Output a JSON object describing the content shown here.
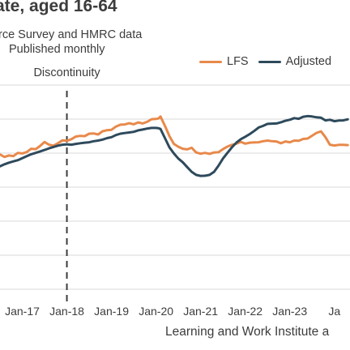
{
  "chart_data": {
    "type": "line",
    "title": "ate, aged 16-64",
    "subtitle": [
      "rce Survey and HMRC data",
      "Published monthly"
    ],
    "source": "Learning and Work Institute a",
    "annotation": "Discontinuity",
    "annotation_x": 2018.0,
    "xticks": [
      "Jan-17",
      "Jan-18",
      "Jan-19",
      "Jan-20",
      "Jan-21",
      "Jan-22",
      "Jan-23",
      "Ja"
    ],
    "xtick_values": [
      2017,
      2018,
      2019,
      2020,
      2021,
      2022,
      2023,
      2024
    ],
    "xlim": [
      2016.5,
      2024.35
    ],
    "ylim": [
      0,
      1
    ],
    "grid": true,
    "legend_position": "top-right",
    "series": [
      {
        "name": "LFS",
        "color": "#e8894a",
        "x": [
          2016.5,
          2016.6,
          2016.7,
          2016.8,
          2016.9,
          2017.0,
          2017.1,
          2017.2,
          2017.3,
          2017.4,
          2017.5,
          2017.6,
          2017.7,
          2017.8,
          2017.9,
          2018.0,
          2018.1,
          2018.2,
          2018.3,
          2018.4,
          2018.5,
          2018.6,
          2018.7,
          2018.8,
          2018.9,
          2019.0,
          2019.1,
          2019.2,
          2019.3,
          2019.4,
          2019.5,
          2019.6,
          2019.7,
          2019.8,
          2019.9,
          2020.0,
          2020.05,
          2020.1,
          2020.2,
          2020.3,
          2020.4,
          2020.5,
          2020.6,
          2020.7,
          2020.8,
          2020.9,
          2021.0,
          2021.1,
          2021.2,
          2021.3,
          2021.4,
          2021.5,
          2021.6,
          2021.7,
          2021.8,
          2021.9,
          2022.0,
          2022.1,
          2022.2,
          2022.3,
          2022.4,
          2022.5,
          2022.6,
          2022.7,
          2022.8,
          2022.9,
          2023.0,
          2023.1,
          2023.2,
          2023.3,
          2023.4,
          2023.5,
          2023.6,
          2023.7,
          2023.8,
          2023.9,
          2024.0,
          2024.1,
          2024.2,
          2024.3
        ],
        "values": [
          0.66,
          0.648,
          0.655,
          0.652,
          0.668,
          0.665,
          0.672,
          0.688,
          0.686,
          0.702,
          0.721,
          0.708,
          0.703,
          0.715,
          0.729,
          0.727,
          0.735,
          0.748,
          0.751,
          0.75,
          0.762,
          0.763,
          0.758,
          0.774,
          0.779,
          0.781,
          0.797,
          0.806,
          0.807,
          0.813,
          0.808,
          0.817,
          0.812,
          0.82,
          0.833,
          0.834,
          0.836,
          0.846,
          0.8,
          0.75,
          0.712,
          0.698,
          0.688,
          0.685,
          0.693,
          0.67,
          0.664,
          0.668,
          0.663,
          0.67,
          0.671,
          0.686,
          0.699,
          0.707,
          0.713,
          0.722,
          0.713,
          0.718,
          0.719,
          0.72,
          0.725,
          0.728,
          0.725,
          0.724,
          0.715,
          0.724,
          0.72,
          0.728,
          0.727,
          0.736,
          0.738,
          0.752,
          0.766,
          0.773,
          0.745,
          0.708,
          0.704,
          0.707,
          0.707,
          0.706
        ]
      },
      {
        "name": "Adjusted",
        "color": "#2e4a5c",
        "x": [
          2016.5,
          2016.6,
          2016.7,
          2016.8,
          2016.9,
          2017.0,
          2017.1,
          2017.2,
          2017.3,
          2017.4,
          2017.5,
          2017.6,
          2017.7,
          2017.8,
          2017.9,
          2018.0,
          2018.1,
          2018.2,
          2018.3,
          2018.4,
          2018.5,
          2018.6,
          2018.7,
          2018.8,
          2018.9,
          2019.0,
          2019.1,
          2019.2,
          2019.3,
          2019.4,
          2019.5,
          2019.6,
          2019.7,
          2019.8,
          2019.9,
          2020.0,
          2020.05,
          2020.1,
          2020.2,
          2020.3,
          2020.4,
          2020.5,
          2020.6,
          2020.7,
          2020.8,
          2020.9,
          2021.0,
          2021.1,
          2021.2,
          2021.3,
          2021.4,
          2021.5,
          2021.6,
          2021.7,
          2021.8,
          2021.9,
          2022.0,
          2022.1,
          2022.2,
          2022.3,
          2022.4,
          2022.5,
          2022.6,
          2022.7,
          2022.8,
          2022.9,
          2023.0,
          2023.1,
          2023.2,
          2023.3,
          2023.4,
          2023.5,
          2023.6,
          2023.7,
          2023.8,
          2023.9,
          2024.0,
          2024.1,
          2024.2,
          2024.3
        ],
        "values": [
          0.602,
          0.612,
          0.62,
          0.626,
          0.632,
          0.642,
          0.652,
          0.661,
          0.668,
          0.675,
          0.682,
          0.69,
          0.697,
          0.703,
          0.708,
          0.71,
          0.708,
          0.712,
          0.715,
          0.718,
          0.72,
          0.725,
          0.728,
          0.733,
          0.74,
          0.745,
          0.755,
          0.762,
          0.765,
          0.768,
          0.771,
          0.778,
          0.782,
          0.787,
          0.79,
          0.79,
          0.789,
          0.785,
          0.74,
          0.695,
          0.665,
          0.64,
          0.622,
          0.598,
          0.575,
          0.56,
          0.555,
          0.556,
          0.56,
          0.575,
          0.605,
          0.64,
          0.668,
          0.695,
          0.718,
          0.735,
          0.747,
          0.76,
          0.775,
          0.792,
          0.8,
          0.81,
          0.811,
          0.812,
          0.818,
          0.825,
          0.83,
          0.838,
          0.835,
          0.845,
          0.848,
          0.846,
          0.842,
          0.84,
          0.827,
          0.83,
          0.823,
          0.826,
          0.827,
          0.832
        ]
      }
    ]
  }
}
